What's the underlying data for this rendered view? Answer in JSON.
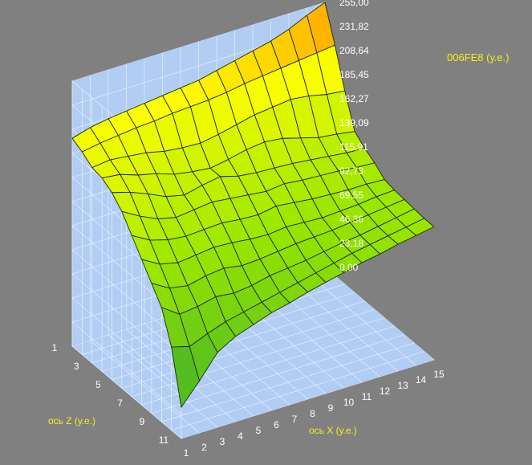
{
  "chart_data": {
    "type": "surface3d",
    "title": "006FE8 (у.е.)",
    "xlabel": "ось X (у.е.)",
    "zlabel": "ось Z (у.е.)",
    "ylim": [
      0,
      255
    ],
    "y_ticks": [
      "0,00",
      "23,18",
      "46,36",
      "69,55",
      "92,73",
      "115,91",
      "139,09",
      "162,27",
      "185,45",
      "208,64",
      "231,82",
      "255,00"
    ],
    "x_ticks": [
      "1",
      "2",
      "3",
      "4",
      "5",
      "6",
      "7",
      "8",
      "9",
      "10",
      "11",
      "12",
      "13",
      "14",
      "15"
    ],
    "z_ticks": [
      "1",
      "3",
      "5",
      "7",
      "9",
      "11"
    ],
    "grid": true,
    "colors": {
      "low": "#1a9a3a",
      "mid": "#9ae600",
      "high": "#ffff00",
      "top": "#ff8000",
      "panel": "#b2cdf4",
      "grid": "#ffffff"
    },
    "z": [
      [
        200,
        205,
        208,
        210,
        212,
        214,
        216,
        218,
        222,
        226,
        230,
        234,
        240,
        248,
        255
      ],
      [
        195,
        198,
        200,
        202,
        203,
        205,
        206,
        207,
        209,
        212,
        214,
        216,
        218,
        220,
        222
      ],
      [
        188,
        190,
        188,
        186,
        182,
        180,
        179,
        182,
        186,
        190,
        192,
        194,
        192,
        188,
        186
      ],
      [
        186,
        184,
        178,
        174,
        168,
        165,
        163,
        166,
        170,
        172,
        170,
        165,
        160,
        158,
        155
      ],
      [
        180,
        175,
        168,
        160,
        156,
        160,
        163,
        158,
        156,
        155,
        154,
        152,
        150,
        148,
        147
      ],
      [
        170,
        160,
        152,
        148,
        150,
        152,
        150,
        148,
        146,
        148,
        146,
        145,
        144,
        142,
        141
      ],
      [
        155,
        145,
        140,
        138,
        139,
        140,
        138,
        137,
        140,
        138,
        136,
        135,
        134,
        134,
        133
      ],
      [
        140,
        130,
        126,
        128,
        130,
        129,
        127,
        126,
        128,
        127,
        126,
        127,
        128,
        130,
        131
      ],
      [
        125,
        115,
        112,
        116,
        118,
        115,
        116,
        118,
        120,
        121,
        122,
        124,
        126,
        128,
        130
      ],
      [
        110,
        98,
        100,
        104,
        102,
        104,
        108,
        110,
        112,
        115,
        118,
        120,
        123,
        126,
        129
      ],
      [
        80,
        75,
        82,
        88,
        92,
        96,
        100,
        104,
        108,
        112,
        116,
        119,
        122,
        125,
        128
      ],
      [
        30,
        50,
        72,
        82,
        88,
        94,
        98,
        103,
        107,
        111,
        115,
        118,
        122,
        125,
        128
      ]
    ]
  }
}
